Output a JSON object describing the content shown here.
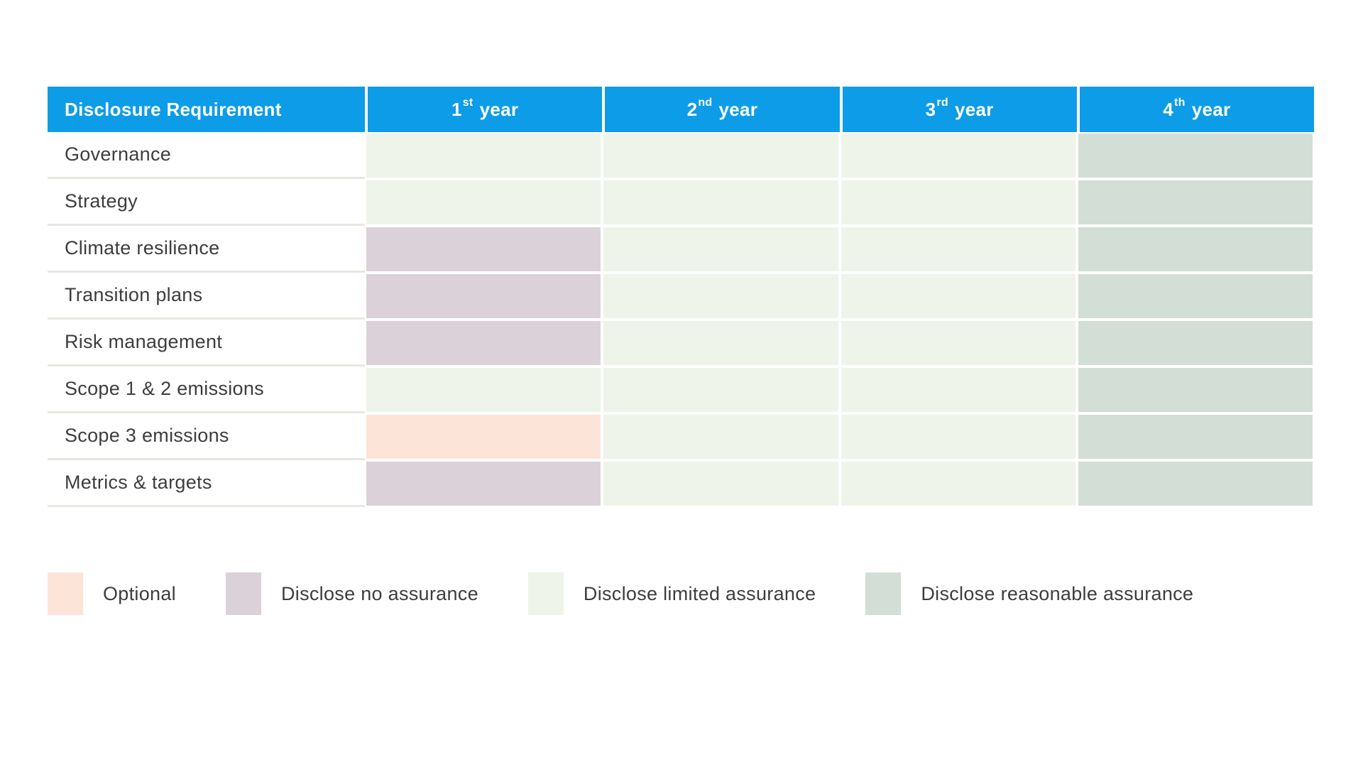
{
  "chart_data": {
    "type": "table",
    "columns": [
      {
        "label": "Disclosure Requirement"
      },
      {
        "number": "1",
        "suffix": "st",
        "word": "year"
      },
      {
        "number": "2",
        "suffix": "nd",
        "word": "year"
      },
      {
        "number": "3",
        "suffix": "rd",
        "word": "year"
      },
      {
        "number": "4",
        "suffix": "th",
        "word": "year"
      }
    ],
    "rows": [
      {
        "label": "Governance",
        "values": [
          "limited-assurance",
          "limited-assurance",
          "limited-assurance",
          "reasonable-assurance"
        ]
      },
      {
        "label": "Strategy",
        "values": [
          "limited-assurance",
          "limited-assurance",
          "limited-assurance",
          "reasonable-assurance"
        ]
      },
      {
        "label": "Climate resilience",
        "values": [
          "no-assurance",
          "limited-assurance",
          "limited-assurance",
          "reasonable-assurance"
        ]
      },
      {
        "label": "Transition plans",
        "values": [
          "no-assurance",
          "limited-assurance",
          "limited-assurance",
          "reasonable-assurance"
        ]
      },
      {
        "label": "Risk management",
        "values": [
          "no-assurance",
          "limited-assurance",
          "limited-assurance",
          "reasonable-assurance"
        ]
      },
      {
        "label": "Scope 1 & 2 emissions",
        "values": [
          "limited-assurance",
          "limited-assurance",
          "limited-assurance",
          "reasonable-assurance"
        ]
      },
      {
        "label": "Scope 3 emissions",
        "values": [
          "optional",
          "limited-assurance",
          "limited-assurance",
          "reasonable-assurance"
        ]
      },
      {
        "label": "Metrics & targets",
        "values": [
          "no-assurance",
          "limited-assurance",
          "limited-assurance",
          "reasonable-assurance"
        ]
      }
    ],
    "legend": [
      {
        "key": "optional",
        "label": "Optional",
        "color": "#fce4d8"
      },
      {
        "key": "no-assurance",
        "label": "Disclose no assurance",
        "color": "#dbd1d9"
      },
      {
        "key": "limited-assurance",
        "label": "Disclose limited assurance",
        "color": "#eef4e9"
      },
      {
        "key": "reasonable-assurance",
        "label": "Disclose reasonable assurance",
        "color": "#d3ded6"
      }
    ],
    "layout_hints": {
      "legend_position": "bottom",
      "grid": "white gaps between cells"
    }
  },
  "colors": {
    "page_bg": "#ffffff",
    "header_bg": "#0d9ce8",
    "header_text": "#ffffff",
    "label_text": "#3d3d3f",
    "row_separator": "#e8e7e1"
  }
}
